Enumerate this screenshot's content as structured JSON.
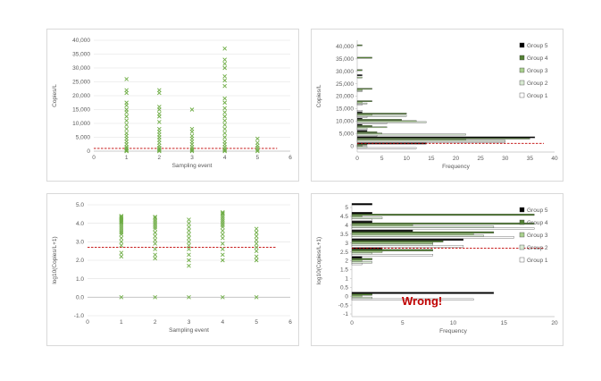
{
  "chart_data": [
    {
      "id": "scatter_linear",
      "type": "scatter",
      "xlabel": "Sampling event",
      "ylabel": "Copies/L",
      "xlim": [
        0,
        6
      ],
      "ylim": [
        0,
        40000
      ],
      "xticks": [
        0,
        1,
        2,
        3,
        4,
        5,
        6
      ],
      "yticks": [
        0,
        5000,
        10000,
        15000,
        20000,
        25000,
        30000,
        35000,
        40000
      ],
      "ytick_labels": [
        "0",
        "5,000",
        "10,000",
        "15,000",
        "20,000",
        "25,000",
        "30,000",
        "35,000",
        "40,000"
      ],
      "threshold": 1000,
      "color": "#70ad47",
      "marker": "x",
      "points": [
        [
          1,
          0
        ],
        [
          1,
          200
        ],
        [
          1,
          500
        ],
        [
          1,
          1000
        ],
        [
          1,
          1500
        ],
        [
          1,
          2500
        ],
        [
          1,
          3500
        ],
        [
          1,
          4500
        ],
        [
          1,
          5500
        ],
        [
          1,
          6500
        ],
        [
          1,
          8000
        ],
        [
          1,
          9500
        ],
        [
          1,
          11000
        ],
        [
          1,
          12500
        ],
        [
          1,
          14000
        ],
        [
          1,
          15000
        ],
        [
          1,
          16500
        ],
        [
          1,
          17500
        ],
        [
          1,
          21000
        ],
        [
          1,
          22000
        ],
        [
          1,
          26000
        ],
        [
          2,
          0
        ],
        [
          2,
          300
        ],
        [
          2,
          700
        ],
        [
          2,
          1200
        ],
        [
          2,
          2000
        ],
        [
          2,
          3000
        ],
        [
          2,
          4000
        ],
        [
          2,
          5000
        ],
        [
          2,
          6000
        ],
        [
          2,
          7000
        ],
        [
          2,
          8000
        ],
        [
          2,
          10500
        ],
        [
          2,
          12500
        ],
        [
          2,
          13500
        ],
        [
          2,
          15000
        ],
        [
          2,
          16000
        ],
        [
          2,
          21000
        ],
        [
          2,
          22000
        ],
        [
          3,
          0
        ],
        [
          3,
          300
        ],
        [
          3,
          800
        ],
        [
          3,
          1500
        ],
        [
          3,
          2500
        ],
        [
          3,
          3500
        ],
        [
          3,
          4500
        ],
        [
          3,
          5500
        ],
        [
          3,
          7000
        ],
        [
          3,
          8000
        ],
        [
          3,
          15000
        ],
        [
          4,
          0
        ],
        [
          4,
          300
        ],
        [
          4,
          800
        ],
        [
          4,
          1500
        ],
        [
          4,
          2500
        ],
        [
          4,
          3500
        ],
        [
          4,
          5000
        ],
        [
          4,
          6500
        ],
        [
          4,
          8000
        ],
        [
          4,
          9500
        ],
        [
          4,
          11000
        ],
        [
          4,
          12500
        ],
        [
          4,
          14000
        ],
        [
          4,
          15500
        ],
        [
          4,
          17500
        ],
        [
          4,
          19000
        ],
        [
          4,
          23500
        ],
        [
          4,
          25500
        ],
        [
          4,
          27000
        ],
        [
          4,
          30000
        ],
        [
          4,
          31500
        ],
        [
          4,
          33000
        ],
        [
          4,
          37000
        ],
        [
          5,
          0
        ],
        [
          5,
          500
        ],
        [
          5,
          1200
        ],
        [
          5,
          2000
        ],
        [
          5,
          3000
        ],
        [
          5,
          4500
        ]
      ]
    },
    {
      "id": "hist_linear",
      "type": "bar",
      "orientation": "horizontal",
      "xlabel": "Frequency",
      "ylabel": "Copies/L",
      "xlim": [
        0,
        40
      ],
      "xticks": [
        0,
        5,
        10,
        15,
        20,
        25,
        30,
        35,
        40
      ],
      "ylim": [
        -2500,
        42500
      ],
      "yticks": [
        0,
        5000,
        10000,
        15000,
        20000,
        25000,
        30000,
        35000,
        40000
      ],
      "ytick_labels": [
        "0",
        "5,000",
        "10,000",
        "15,000",
        "20,000",
        "25,000",
        "30,000",
        "35,000",
        "40,000"
      ],
      "threshold": 1000,
      "bins": [
        0,
        2500,
        5000,
        7500,
        10000,
        12500,
        15000,
        17500,
        20000,
        22500,
        25000,
        27500,
        30000,
        32500,
        35000,
        37500,
        40000
      ],
      "series": [
        {
          "name": "Group 1",
          "color": "#ffffff",
          "values": [
            12,
            30,
            4,
            2,
            6,
            2,
            1,
            1,
            0,
            0,
            0,
            0,
            0,
            0,
            0,
            0,
            0
          ]
        },
        {
          "name": "Group 2",
          "color": "#d9ead3",
          "values": [
            2,
            30,
            22,
            2,
            14,
            10,
            0,
            2,
            0,
            1,
            0,
            0,
            0,
            0,
            0,
            0,
            0
          ]
        },
        {
          "name": "Group 3",
          "color": "#a9d08e",
          "values": [
            1,
            22,
            5,
            6,
            12,
            3,
            0,
            1,
            0,
            1,
            0,
            1,
            0,
            0,
            0,
            0,
            0
          ]
        },
        {
          "name": "Group 4",
          "color": "#548235",
          "values": [
            2,
            35,
            4,
            3,
            9,
            10,
            0,
            3,
            0,
            3,
            0,
            0,
            1,
            0,
            3,
            0,
            1
          ]
        },
        {
          "name": "Group 5",
          "color": "#000000",
          "values": [
            14,
            36,
            2,
            1,
            1,
            1,
            0,
            0,
            0,
            0,
            0,
            1,
            0,
            0,
            0,
            0,
            0
          ]
        }
      ]
    },
    {
      "id": "scatter_log",
      "type": "scatter",
      "xlabel": "Sampling event",
      "ylabel": "log10(Copies/L+1)",
      "xlim": [
        0,
        6
      ],
      "ylim": [
        -1.0,
        5.0
      ],
      "xticks": [
        0,
        1,
        2,
        3,
        4,
        5,
        6
      ],
      "yticks": [
        -1,
        0,
        1,
        2,
        3,
        4,
        5
      ],
      "ytick_labels": [
        "-1.0",
        "0.0",
        "1.0",
        "2.0",
        "3.0",
        "4.0",
        "5.0"
      ],
      "threshold": 2.7,
      "color": "#70ad47",
      "marker": "x",
      "points": [
        [
          1,
          0
        ],
        [
          1,
          2.2
        ],
        [
          1,
          2.4
        ],
        [
          1,
          2.8
        ],
        [
          1,
          3.0
        ],
        [
          1,
          3.2
        ],
        [
          1,
          3.4
        ],
        [
          1,
          3.5
        ],
        [
          1,
          3.6
        ],
        [
          1,
          3.7
        ],
        [
          1,
          3.8
        ],
        [
          1,
          3.9
        ],
        [
          1,
          4.0
        ],
        [
          1,
          4.05
        ],
        [
          1,
          4.1
        ],
        [
          1,
          4.15
        ],
        [
          1,
          4.2
        ],
        [
          1,
          4.25
        ],
        [
          1,
          4.3
        ],
        [
          1,
          4.35
        ],
        [
          1,
          4.4
        ],
        [
          2,
          0
        ],
        [
          2,
          2.1
        ],
        [
          2,
          2.3
        ],
        [
          2,
          2.6
        ],
        [
          2,
          2.9
        ],
        [
          2,
          3.1
        ],
        [
          2,
          3.3
        ],
        [
          2,
          3.5
        ],
        [
          2,
          3.7
        ],
        [
          2,
          3.8
        ],
        [
          2,
          3.9
        ],
        [
          2,
          4.0
        ],
        [
          2,
          4.1
        ],
        [
          2,
          4.2
        ],
        [
          2,
          4.3
        ],
        [
          2,
          4.35
        ],
        [
          3,
          0
        ],
        [
          3,
          1.7
        ],
        [
          3,
          2.0
        ],
        [
          3,
          2.3
        ],
        [
          3,
          2.6
        ],
        [
          3,
          2.8
        ],
        [
          3,
          3.0
        ],
        [
          3,
          3.2
        ],
        [
          3,
          3.4
        ],
        [
          3,
          3.6
        ],
        [
          3,
          3.8
        ],
        [
          3,
          4.0
        ],
        [
          3,
          4.2
        ],
        [
          4,
          0
        ],
        [
          4,
          2.0
        ],
        [
          4,
          2.3
        ],
        [
          4,
          2.6
        ],
        [
          4,
          2.9
        ],
        [
          4,
          3.2
        ],
        [
          4,
          3.4
        ],
        [
          4,
          3.6
        ],
        [
          4,
          3.8
        ],
        [
          4,
          3.9
        ],
        [
          4,
          4.0
        ],
        [
          4,
          4.1
        ],
        [
          4,
          4.2
        ],
        [
          4,
          4.3
        ],
        [
          4,
          4.4
        ],
        [
          4,
          4.5
        ],
        [
          4,
          4.55
        ],
        [
          4,
          4.6
        ],
        [
          5,
          0
        ],
        [
          5,
          2.0
        ],
        [
          5,
          2.2
        ],
        [
          5,
          2.5
        ],
        [
          5,
          2.7
        ],
        [
          5,
          2.9
        ],
        [
          5,
          3.1
        ],
        [
          5,
          3.3
        ],
        [
          5,
          3.5
        ],
        [
          5,
          3.7
        ]
      ]
    },
    {
      "id": "hist_log",
      "type": "bar",
      "orientation": "horizontal",
      "xlabel": "Frequency",
      "ylabel": "log10(Copies/L+1)",
      "xlim": [
        0,
        20
      ],
      "xticks": [
        0,
        5,
        10,
        15,
        20
      ],
      "ylim": [
        -1.15,
        5.15
      ],
      "yticks": [
        -1,
        -0.5,
        0,
        0.5,
        1,
        1.5,
        2,
        2.5,
        3,
        3.5,
        4,
        4.5,
        5
      ],
      "ytick_labels": [
        "-1",
        "-0.5",
        "0",
        "0.5",
        "1",
        "1.5",
        "2",
        "2.5",
        "3",
        "3.5",
        "4",
        "4.5",
        "5"
      ],
      "threshold": 2.7,
      "bins": [
        0,
        2,
        2.5,
        3,
        3.5,
        4,
        4.5,
        5
      ],
      "series": [
        {
          "name": "Group 1",
          "color": "#ffffff",
          "values": [
            12,
            1,
            8,
            11,
            16,
            18,
            2,
            0
          ]
        },
        {
          "name": "Group 2",
          "color": "#d9ead3",
          "values": [
            2,
            2,
            2,
            8,
            13,
            14,
            3,
            0
          ]
        },
        {
          "name": "Group 3",
          "color": "#a9d08e",
          "values": [
            1,
            1,
            3,
            8,
            12,
            6,
            1,
            0
          ]
        },
        {
          "name": "Group 4",
          "color": "#548235",
          "values": [
            2,
            2,
            8,
            9,
            14,
            18,
            18,
            0
          ]
        },
        {
          "name": "Group 5",
          "color": "#000000",
          "values": [
            14,
            1,
            3,
            11,
            6,
            2,
            2,
            2
          ]
        }
      ],
      "annotation": "Wrong!",
      "annotation_color": "#c00000"
    }
  ]
}
